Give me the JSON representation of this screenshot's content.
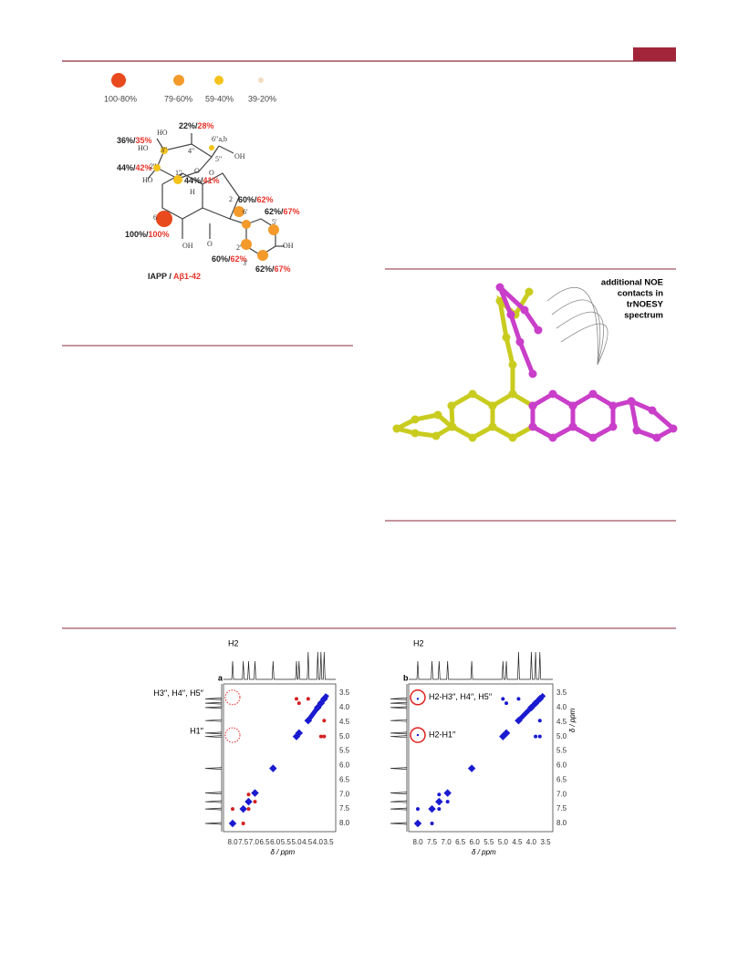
{
  "figure1": {
    "legend": [
      "100-80%",
      "79-60%",
      "59-40%",
      "39-20%"
    ],
    "percent_labels": [
      [
        "22%/",
        "28%"
      ],
      [
        "36%/",
        "35%"
      ],
      [
        "44%/",
        "42%"
      ],
      [
        "44%/",
        "41%"
      ],
      [
        "60%/",
        "62%"
      ],
      [
        "62%/",
        "67%"
      ],
      [
        "100%/",
        "100%"
      ],
      [
        "60%/",
        "62%"
      ],
      [
        "62%/",
        "67%"
      ]
    ],
    "atoms": [
      "HO",
      "6′′a,b",
      "4′′",
      "3′′",
      "HO",
      "5′′",
      "OH",
      "O",
      "2′′",
      "1′′",
      "HO",
      "H",
      "O",
      "2",
      "6′",
      "5′",
      "6",
      "OH",
      "O",
      "2′",
      "3′",
      "OH"
    ],
    "caption": [
      "IAPP / ",
      "Aβ1-42"
    ]
  },
  "figure2": {
    "annotation": [
      "additional NOE",
      "contacts in",
      "trNOESY",
      "spectrum"
    ]
  },
  "figure3": {
    "panels": [
      {
        "letter": "a",
        "top_peak": "H2",
        "labels": [
          "H3′′, H4′′, H5′′",
          "H1′′"
        ],
        "ticks": [
          "3.5",
          "4.0",
          "4.5",
          "5.0",
          "5.5",
          "6.0",
          "6.5",
          "7.0",
          "7.5",
          "8.0"
        ],
        "x_axis_label": "δ / ppm"
      },
      {
        "letter": "b",
        "top_peak": "H2",
        "labels": [
          "H2-H3′′, H4′′, H5′′",
          "H2-H1′′"
        ],
        "ticks": [
          "3.5",
          "4.0",
          "4.5",
          "5.0",
          "5.5",
          "6.0",
          "6.5",
          "7.0",
          "7.5",
          "8.0"
        ],
        "x_axis_label": "δ / ppm",
        "y_axis_label": "δ / ppm"
      }
    ]
  }
}
